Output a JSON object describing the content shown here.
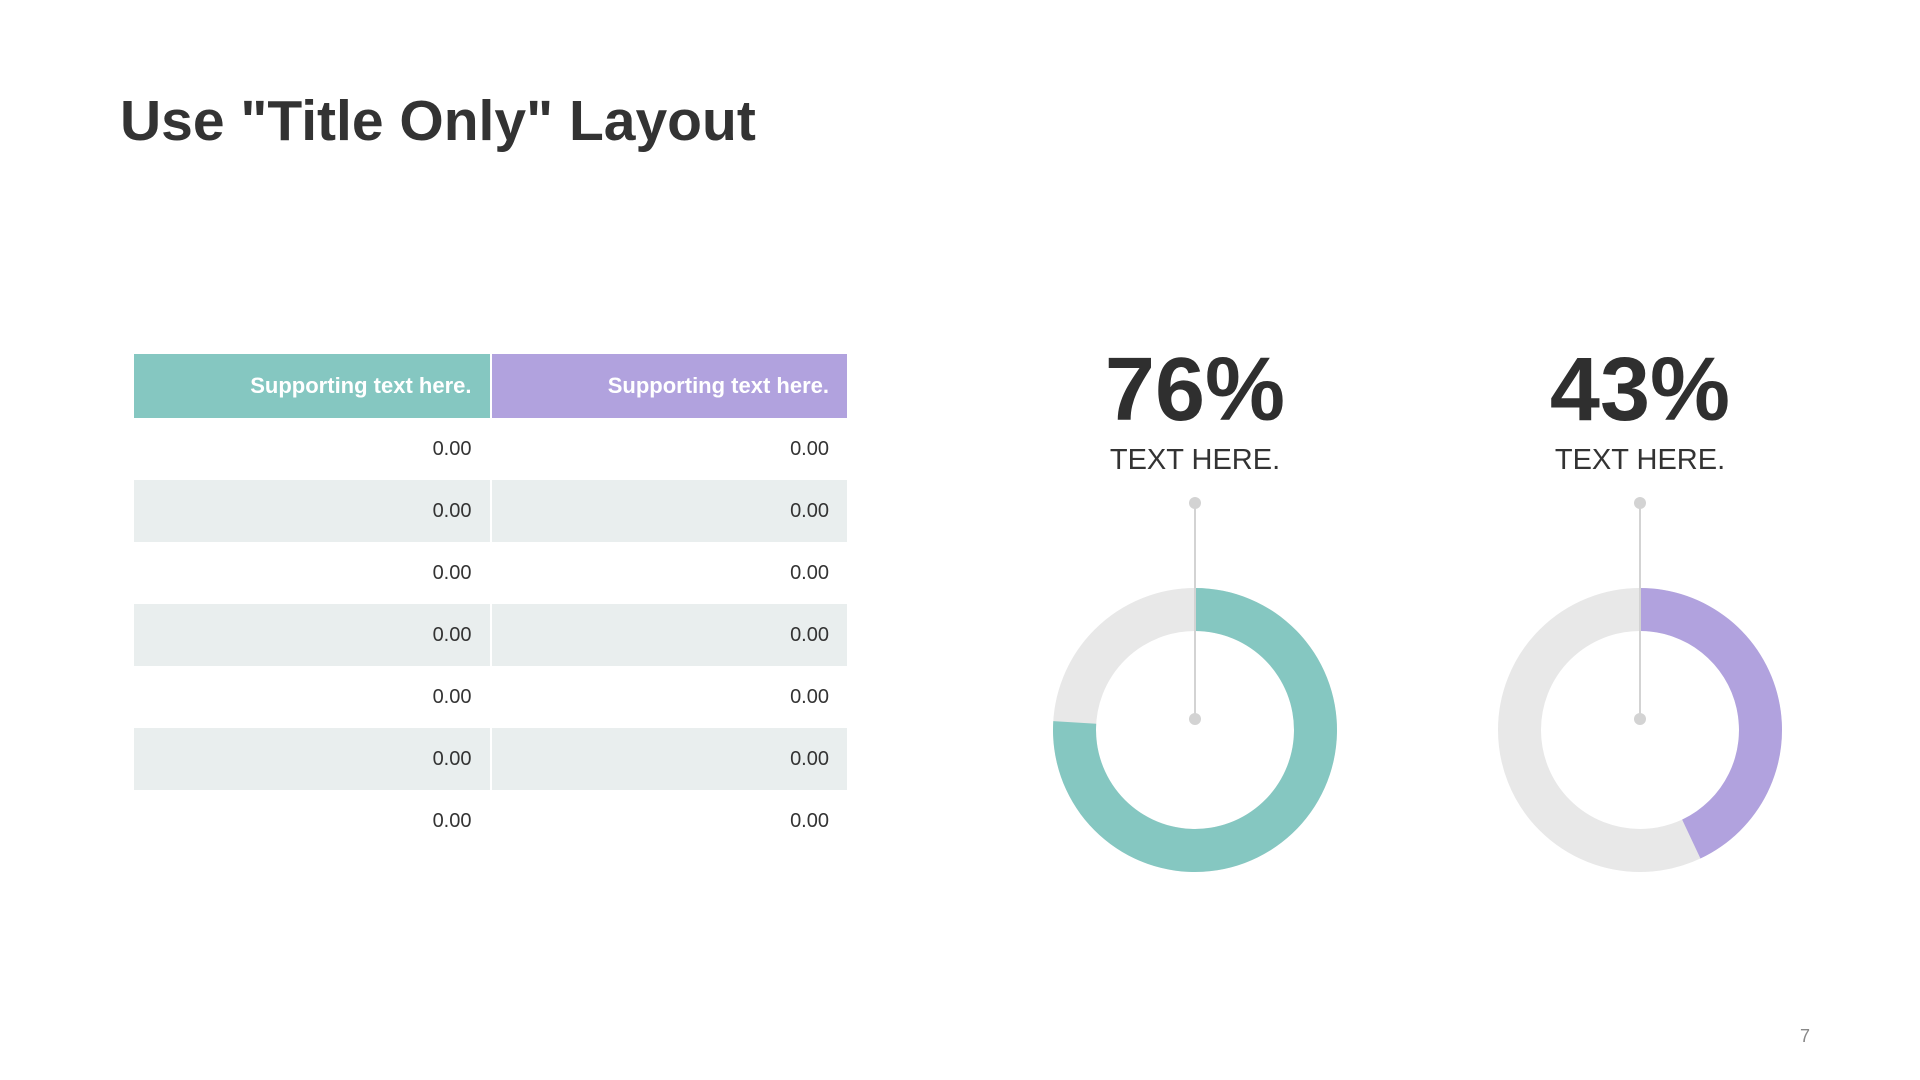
{
  "title": "Use \"Title Only\" Layout",
  "page_number": "7",
  "colors": {
    "teal": "#85c7c1",
    "purple": "#b1a2de",
    "track": "#e8e8e8",
    "pin": "#d3d3d3"
  },
  "table": {
    "headers": [
      "Supporting text here.",
      "Supporting text here."
    ],
    "rows": [
      [
        "0.00",
        "0.00"
      ],
      [
        "0.00",
        "0.00"
      ],
      [
        "0.00",
        "0.00"
      ],
      [
        "0.00",
        "0.00"
      ],
      [
        "0.00",
        "0.00"
      ],
      [
        "0.00",
        "0.00"
      ],
      [
        "0.00",
        "0.00"
      ]
    ]
  },
  "chart_data": [
    {
      "type": "pie",
      "values": [
        76,
        24
      ],
      "percent_label": "76%",
      "label": "TEXT HERE.",
      "color": "#85c7c1"
    },
    {
      "type": "pie",
      "values": [
        43,
        57
      ],
      "percent_label": "43%",
      "label": "TEXT HERE.",
      "color": "#b1a2de"
    }
  ]
}
